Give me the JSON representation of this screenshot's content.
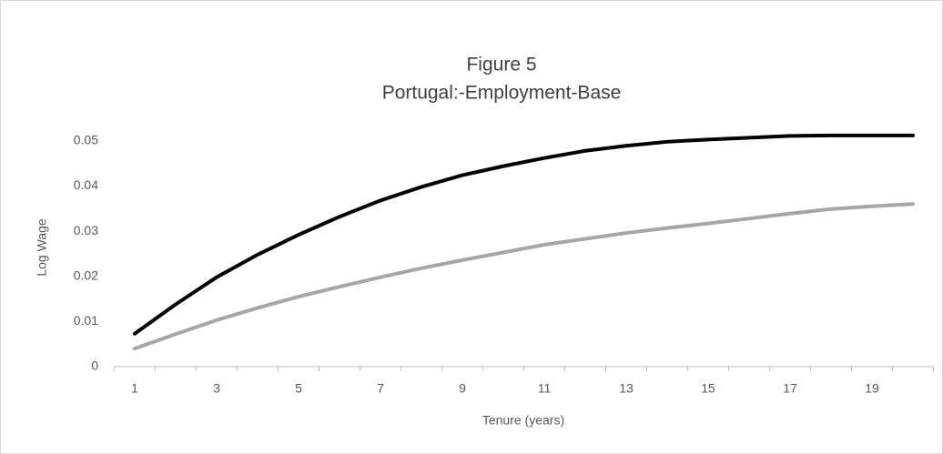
{
  "chart_data": {
    "type": "line",
    "title": "Figure 5",
    "subtitle": "Portugal:-Employment-Base",
    "x_label": "Tenure (years)",
    "y_label": "Log Wage",
    "categories": [
      "1",
      null,
      "3",
      null,
      "5",
      null,
      "7",
      null,
      "9",
      null,
      "11",
      null,
      "13",
      null,
      "15",
      null,
      "17",
      null,
      "19",
      null
    ],
    "series": [
      {
        "color": "#000000",
        "values": [
          0.0073,
          0.0138,
          0.0198,
          0.0248,
          0.0292,
          0.0332,
          0.0368,
          0.0398,
          0.0424,
          0.0444,
          0.0462,
          0.0478,
          0.0489,
          0.0498,
          0.0503,
          0.0507,
          0.0511,
          0.0512,
          0.0512,
          0.0512
        ]
      },
      {
        "color": "#a6a6a6",
        "values": [
          0.004,
          0.0072,
          0.0103,
          0.013,
          0.0155,
          0.0177,
          0.0198,
          0.0218,
          0.0236,
          0.0253,
          0.027,
          0.0283,
          0.0296,
          0.0307,
          0.0317,
          0.0328,
          0.0339,
          0.0349,
          0.0355,
          0.036
        ]
      }
    ],
    "ylim": [
      0,
      0.055
    ],
    "yticks": [
      0,
      0.01,
      0.02,
      0.03,
      0.04,
      0.05
    ],
    "grid": false
  }
}
